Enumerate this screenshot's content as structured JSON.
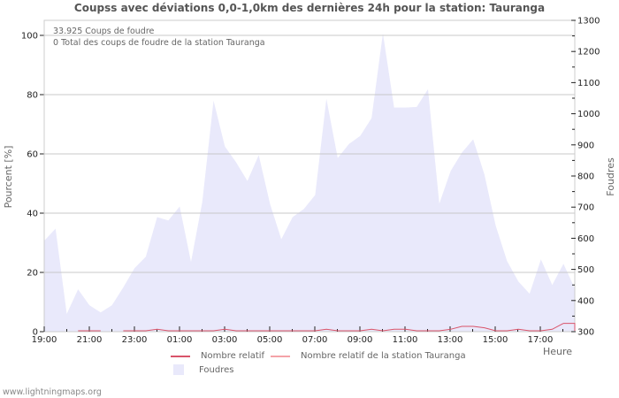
{
  "title": "Coupss avec déviations 0,0-1,0km des dernières 24h pour la station: Tauranga",
  "info": {
    "line1": "33.925  Coups de foudre",
    "line2": "0 Total des coups de foudre de la station Tauranga"
  },
  "axes": {
    "left_label": "Pourcent   [%]",
    "right_label": "Foudres",
    "x_label": "Heure"
  },
  "legend": {
    "items": [
      {
        "label": "Nombre relatif",
        "type": "line",
        "color": "#d9546a"
      },
      {
        "label": "Nombre relatif de la station Tauranga",
        "type": "line",
        "color": "#f4a3a8"
      },
      {
        "label": "Foudres",
        "type": "area",
        "color": "#e9e9fb"
      }
    ]
  },
  "footer": "www.lightningmaps.org",
  "colors": {
    "area_fill": "#e9e9fb",
    "relative_line": "#d9546a",
    "station_line": "#f4a3a8",
    "grid": "#c8c8c8",
    "frame": "#cccccc"
  },
  "chart_data": {
    "type": "area",
    "title": "Coupss avec déviations 0,0-1,0km des dernières 24h pour la station: Tauranga",
    "xlabel": "Heure",
    "ylabel": "Pourcent   [%]",
    "ylabel_right": "Foudres",
    "x_tick_labels": [
      "19:00",
      "21:00",
      "23:00",
      "01:00",
      "03:00",
      "05:00",
      "07:00",
      "09:00",
      "11:00",
      "13:00",
      "15:00",
      "17:00"
    ],
    "ylim_left": [
      0,
      105
    ],
    "y_ticks_left": [
      0,
      20,
      40,
      60,
      80,
      100
    ],
    "ylim_right": [
      300,
      1300
    ],
    "y_ticks_right": [
      300,
      400,
      500,
      600,
      700,
      800,
      900,
      1000,
      1100,
      1200,
      1300
    ],
    "grid": true,
    "legend_position": "bottom",
    "x": [
      "19:00",
      "19:30",
      "20:00",
      "20:30",
      "21:00",
      "21:30",
      "22:00",
      "22:30",
      "23:00",
      "23:30",
      "00:00",
      "00:30",
      "01:00",
      "01:30",
      "02:00",
      "02:30",
      "03:00",
      "03:30",
      "04:00",
      "04:30",
      "05:00",
      "05:30",
      "06:00",
      "06:30",
      "07:00",
      "07:30",
      "08:00",
      "08:30",
      "09:00",
      "09:30",
      "10:00",
      "10:30",
      "11:00",
      "11:30",
      "12:00",
      "12:30",
      "13:00",
      "13:30",
      "14:00",
      "14:30",
      "15:00",
      "15:30",
      "16:00",
      "16:30",
      "17:00",
      "17:30",
      "18:00",
      "18:30"
    ],
    "series": [
      {
        "name": "Foudres",
        "axis": "right",
        "type": "area",
        "values": [
          592,
          631,
          357,
          436,
          385,
          362,
          385,
          442,
          504,
          541,
          668,
          657,
          702,
          524,
          716,
          1042,
          895,
          844,
          784,
          867,
          711,
          597,
          668,
          694,
          739,
          1048,
          858,
          903,
          929,
          986,
          1258,
          1020,
          1020,
          1022,
          1079,
          711,
          816,
          875,
          918,
          804,
          640,
          527,
          461,
          422,
          532,
          450,
          518,
          439
        ]
      },
      {
        "name": "Nombre relatif",
        "axis": "left",
        "type": "line",
        "values": [
          null,
          null,
          null,
          0,
          0,
          0,
          null,
          0,
          0,
          0,
          0.5,
          0,
          0,
          0,
          0,
          0,
          0.5,
          0,
          0,
          0,
          0,
          0,
          0,
          0,
          0,
          0.5,
          0,
          0,
          0,
          0.5,
          0,
          0.5,
          0.5,
          0,
          0,
          0,
          0.5,
          1.5,
          1.5,
          1,
          0,
          0,
          0.5,
          0,
          0,
          0.5,
          2.5,
          2.5
        ]
      },
      {
        "name": "Nombre relatif de la station Tauranga",
        "axis": "left",
        "type": "line",
        "values": []
      }
    ]
  }
}
